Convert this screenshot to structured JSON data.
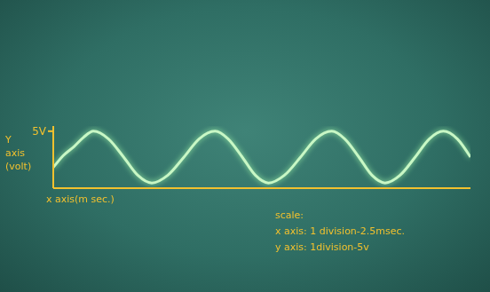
{
  "chart_data": {
    "type": "line",
    "y_label": "Y axis (volt)",
    "x_label": "x axis(m sec.)",
    "annotations": [
      "scale:",
      "x axis: 1 division-2.5msec.",
      "y axis: 1division-5v"
    ],
    "x": [
      0,
      1.0,
      2.05,
      3.0,
      4.0,
      5.5,
      7.0,
      8.4,
      9.8,
      11.4,
      13.0,
      14.5,
      16.1,
      17.4,
      18.8,
      20.1,
      21.4,
      23.0,
      24.6,
      26.1,
      27.7,
      29.0,
      30.4,
      31.7,
      33.0,
      34.5,
      36.0,
      37.4,
      38.8,
      40.2,
      41.5
    ],
    "values": [
      -2,
      0.3,
      2,
      3.8,
      5,
      3.5,
      0,
      -3.5,
      -5,
      -3.5,
      0,
      3.5,
      5,
      3.5,
      0,
      -3.5,
      -5,
      -3.5,
      0,
      3.5,
      5,
      3.5,
      0,
      -3.5,
      -5,
      -3.5,
      0,
      3.5,
      5,
      3.5,
      0
    ],
    "color": "#c8f7c5",
    "xlim": [
      0,
      41.5
    ],
    "ylim": [
      -6,
      6
    ],
    "yticks": [
      {
        "value": 5,
        "label": "5V"
      }
    ],
    "tick_labels": "y"
  }
}
